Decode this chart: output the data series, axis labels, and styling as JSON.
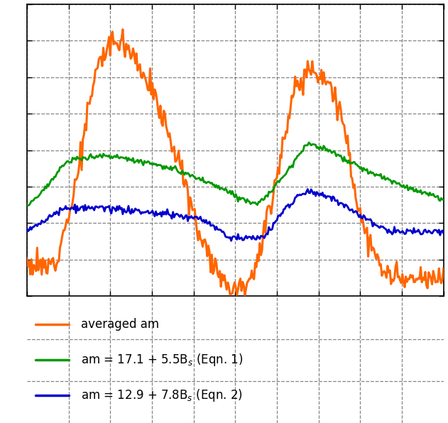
{
  "orange_color": "#FF6600",
  "green_color": "#009900",
  "blue_color": "#0000CC",
  "bg_color": "#FFFFFF",
  "grid_color": "#666666",
  "legend_labels": [
    "averaged am",
    "am = 17.1 + 5.5B$_s$ (Eqn. 1)",
    "am = 12.9 + 7.8B$_s$ (Eqn. 2)"
  ],
  "n_points": 366,
  "orange_noise": 2.2,
  "green_noise": 0.45,
  "blue_noise": 0.55,
  "lw_orange": 2.2,
  "lw_green": 2.0,
  "lw_blue": 2.0,
  "seed": 12
}
